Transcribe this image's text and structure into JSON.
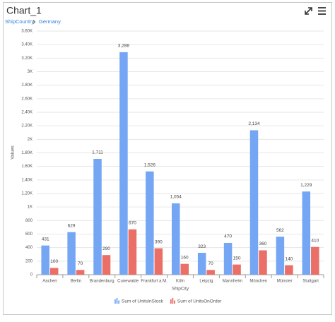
{
  "chart_data": {
    "type": "bar",
    "title": "Chart_1",
    "breadcrumb": [
      "ShipCountry",
      "Germany"
    ],
    "x_label": "ShipCity",
    "y_label": "Values",
    "categories": [
      "Aachen",
      "Berlin",
      "Brandenburg",
      "Cunewalde",
      "Frankfurt a.M.",
      "Köln",
      "Leipzig",
      "Mannheim",
      "München",
      "Münster",
      "Stuttgart"
    ],
    "series": [
      {
        "name": "Sum of UnitsInStock",
        "color": "#75a6f4",
        "values": [
          431,
          629,
          1711,
          3288,
          1526,
          1054,
          323,
          470,
          2134,
          562,
          1229
        ],
        "value_labels": [
          "431",
          "629",
          "1,711",
          "3,288",
          "1,526",
          "1,054",
          "323",
          "470",
          "2,134",
          "562",
          "1,229"
        ]
      },
      {
        "name": "Sum of UnitsOnOrder",
        "color": "#ea6f66",
        "values": [
          100,
          70,
          290,
          670,
          390,
          160,
          70,
          150,
          360,
          140,
          410
        ]
      }
    ],
    "ylim": [
      0,
      3600
    ],
    "yticks": [
      0,
      200,
      400,
      600,
      800,
      {
        "value": 1000,
        "label": "1K"
      },
      {
        "value": 1200,
        "label": "1.20K"
      },
      {
        "value": 1400,
        "label": "1.40K"
      },
      {
        "value": 1600,
        "label": "1.60K"
      },
      {
        "value": 1800,
        "label": "1.80K"
      },
      {
        "value": 2000,
        "label": "2K"
      },
      {
        "value": 2200,
        "label": "2.20K"
      },
      {
        "value": 2400,
        "label": "2.40K"
      },
      {
        "value": 2600,
        "label": "2.60K"
      },
      {
        "value": 2800,
        "label": "2.80K"
      },
      {
        "value": 3000,
        "label": "3K"
      },
      {
        "value": 3200,
        "label": "3.20K"
      },
      {
        "value": 3400,
        "label": "3.40K"
      },
      {
        "value": 3600,
        "label": "3.60K"
      }
    ],
    "grid": true
  }
}
